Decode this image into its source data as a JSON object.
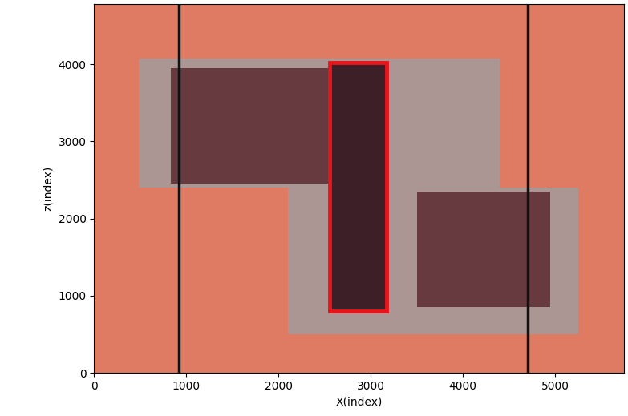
{
  "chart_data": {
    "type": "image",
    "xlabel": "X(index)",
    "ylabel": "z(index)",
    "xlim": [
      0,
      5750
    ],
    "ylim": [
      0,
      4780
    ],
    "xticks": [
      0,
      1000,
      2000,
      3000,
      4000,
      5000
    ],
    "yticks": [
      0,
      1000,
      2000,
      3000,
      4000
    ],
    "background": "#e07b63",
    "regions": [
      {
        "x": [
          480,
          4400
        ],
        "z": [
          2400,
          4080
        ],
        "color": "#a39c9c"
      },
      {
        "x": [
          2100,
          5250
        ],
        "z": [
          500,
          2400
        ],
        "color": "#a39c9c"
      },
      {
        "x": [
          830,
          2550
        ],
        "z": [
          2450,
          3950
        ],
        "color": "#5a2a30"
      },
      {
        "x": [
          3500,
          4950
        ],
        "z": [
          850,
          2350
        ],
        "color": "#5a2a30"
      },
      {
        "x": [
          2550,
          3170
        ],
        "z": [
          800,
          4020
        ],
        "color": "#2a0a14"
      }
    ],
    "vertical_lines": {
      "x": [
        920,
        4700
      ],
      "color": "#111111"
    },
    "box": {
      "x": [
        2550,
        3170
      ],
      "z": [
        800,
        4020
      ],
      "color": "#e8141a"
    }
  }
}
